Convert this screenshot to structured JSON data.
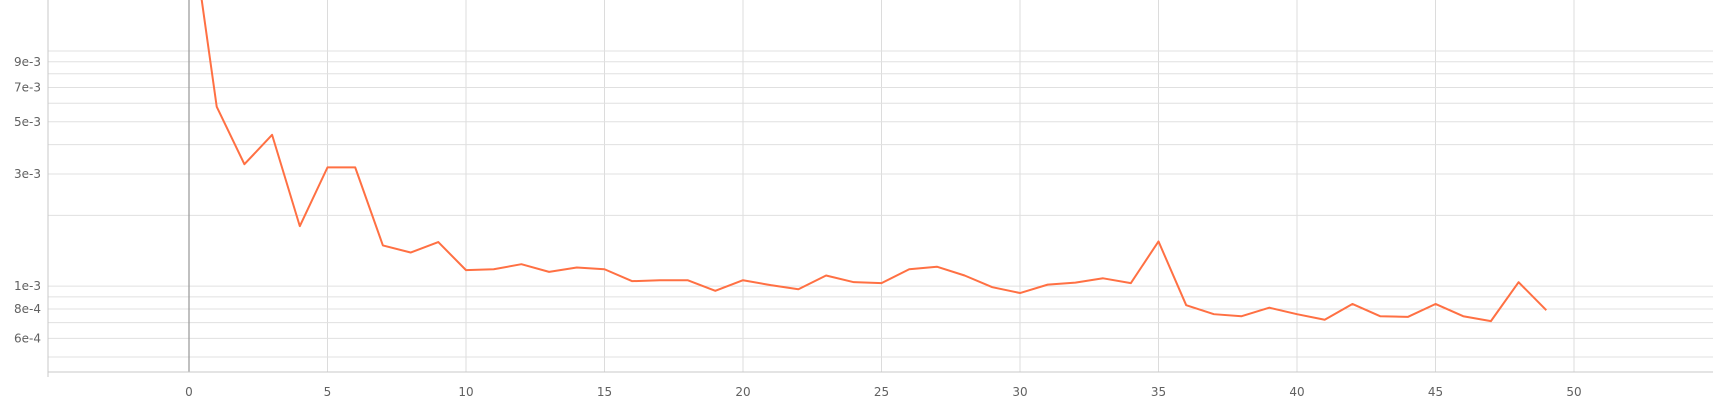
{
  "chart_data": {
    "type": "line",
    "title": "",
    "xlabel": "",
    "ylabel": "",
    "yscale": "log",
    "grid": true,
    "xlim": [
      -5,
      55
    ],
    "ylim": [
      0.00044,
      0.021
    ],
    "x_ticks": [
      0,
      5,
      10,
      15,
      20,
      25,
      30,
      35,
      40,
      45,
      50
    ],
    "x_tick_labels": [
      "0",
      "5",
      "10",
      "15",
      "20",
      "25",
      "30",
      "35",
      "40",
      "45",
      "50"
    ],
    "y_ticks": [
      0.0006,
      0.0008,
      0.001,
      0.003,
      0.005,
      0.007,
      0.009
    ],
    "y_tick_labels": [
      "6e-4",
      "8e-4",
      "1e-3",
      "3e-3",
      "5e-3",
      "7e-3",
      "9e-3"
    ],
    "y_minor_gridlines": [
      0.0005,
      0.0007,
      0.0009,
      0.002,
      0.004,
      0.006,
      0.008,
      0.01
    ],
    "series": [
      {
        "color": "#ff7043",
        "x": [
          0,
          1,
          2,
          3,
          4,
          5,
          6,
          7,
          8,
          9,
          10,
          11,
          12,
          13,
          14,
          15,
          16,
          17,
          18,
          19,
          20,
          21,
          22,
          23,
          24,
          25,
          26,
          27,
          28,
          29,
          30,
          31,
          32,
          33,
          34,
          35,
          36,
          37,
          38,
          39,
          40,
          41,
          42,
          43,
          44,
          45,
          46,
          47,
          48,
          49
        ],
        "values": [
          0.04,
          0.0058,
          0.0033,
          0.0044,
          0.0018,
          0.0032,
          0.0032,
          0.00149,
          0.00139,
          0.00154,
          0.00117,
          0.00118,
          0.00124,
          0.00115,
          0.0012,
          0.00118,
          0.00105,
          0.00106,
          0.00106,
          0.000955,
          0.00106,
          0.00101,
          0.00097,
          0.00111,
          0.00104,
          0.00103,
          0.00118,
          0.00121,
          0.00111,
          0.00099,
          0.000935,
          0.001015,
          0.001035,
          0.00108,
          0.00103,
          0.00155,
          0.00083,
          0.00076,
          0.000745,
          0.00081,
          0.00076,
          0.00072,
          0.00084,
          0.000745,
          0.00074,
          0.00084,
          0.000745,
          0.00071,
          0.00104,
          0.00079
        ]
      }
    ]
  }
}
